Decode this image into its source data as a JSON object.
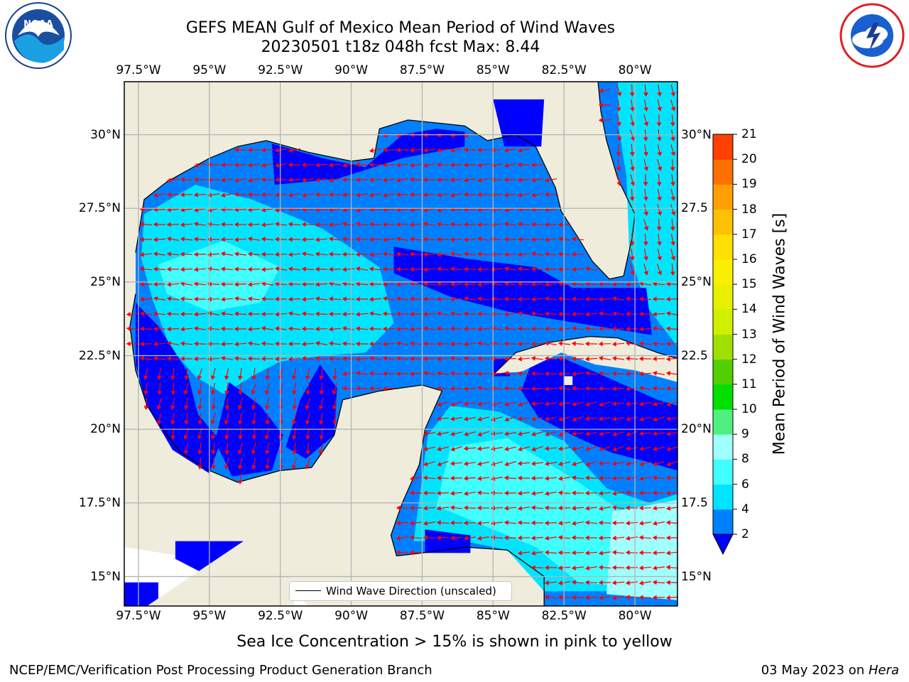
{
  "header": {
    "title_line1": "GEFS MEAN Gulf of Mexico Mean Period of Wind Waves",
    "title_line2": "20230501 t18z 048h fcst   Max: 8.44"
  },
  "logos": {
    "left": {
      "icon": "noaa-logo-icon",
      "text": "NOAA",
      "ring_text": "NATIONAL OCEANIC AND ATMOSPHERIC ADMINISTRATION · U.S. DEPARTMENT OF COMMERCE"
    },
    "right": {
      "icon": "nws-logo-icon",
      "ring_text": "NATIONAL WEATHER SERVICE"
    }
  },
  "map": {
    "lon_ticks": [
      "97.5°W",
      "95°W",
      "92.5°W",
      "90°W",
      "87.5°W",
      "85°W",
      "82.5°W",
      "80°W"
    ],
    "lat_ticks": [
      "30°N",
      "27.5°N",
      "25°N",
      "22.5°N",
      "20°N",
      "17.5°N",
      "15°N"
    ],
    "lat_ticks_right": [
      "30°N",
      "27.5",
      "25°N",
      "22.5",
      "20°N",
      "17.5",
      "15°N"
    ],
    "lon_range": [
      -98,
      -78.5
    ],
    "lat_range": [
      14,
      31.8
    ],
    "legend_label": "Wind Wave Direction (unscaled)",
    "land_color": "#efecdc",
    "ocean_color": "#0080ff",
    "arrow_color": "#ff0000"
  },
  "colorbar": {
    "label": "Mean Period of Wind Waves [s]",
    "ticks": [
      "2",
      "4",
      "6",
      "8",
      "9",
      "10",
      "11",
      "12",
      "13",
      "14",
      "15",
      "16",
      "17",
      "18",
      "19",
      "20",
      "21"
    ],
    "colors": [
      "#0080ff",
      "#00e5ff",
      "#40ffff",
      "#a0ffff",
      "#50f080",
      "#00e000",
      "#50d000",
      "#a0e000",
      "#d0f000",
      "#e8f000",
      "#f8f000",
      "#ffe000",
      "#ffc000",
      "#ffa000",
      "#ff7000",
      "#ff4000",
      "#ff0000"
    ],
    "under_color": "#0000ff"
  },
  "footer": {
    "note": "Sea Ice Concentration > 15% is shown in pink to yellow",
    "left": "NCEP/EMC/Verification Post Processing Product Generation Branch",
    "right_date": "03 May 2023 on ",
    "right_host": "Hera"
  }
}
